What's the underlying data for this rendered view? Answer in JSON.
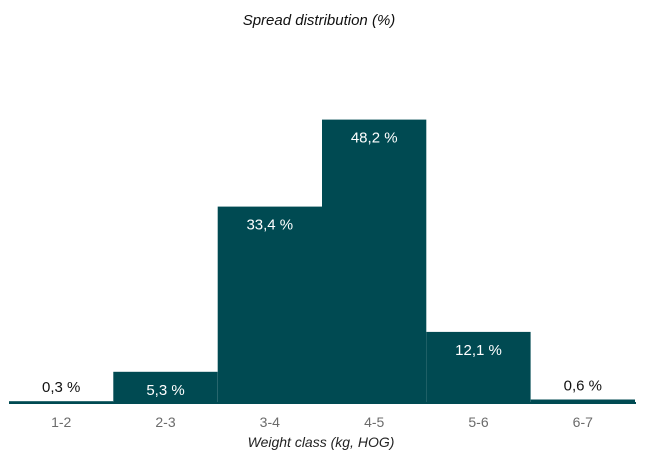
{
  "chart_data": {
    "type": "bar",
    "title": "Spread distribution (%)",
    "xlabel": "Weight class (kg, HOG)",
    "ylabel": "",
    "categories": [
      "1-2",
      "2-3",
      "3-4",
      "4-5",
      "5-6",
      "6-7"
    ],
    "values": [
      0.3,
      5.3,
      33.4,
      48.2,
      12.1,
      0.6
    ],
    "data_labels": [
      "0,3 %",
      "5,3 %",
      "33,4 %",
      "48,2 %",
      "12,1 %",
      "0,6 %"
    ],
    "ylim": [
      0,
      55
    ],
    "grid": false,
    "legend": "none",
    "bar_color": "#004a52",
    "label_color_inside": "#ffffff",
    "label_color_outside": "#111111"
  }
}
